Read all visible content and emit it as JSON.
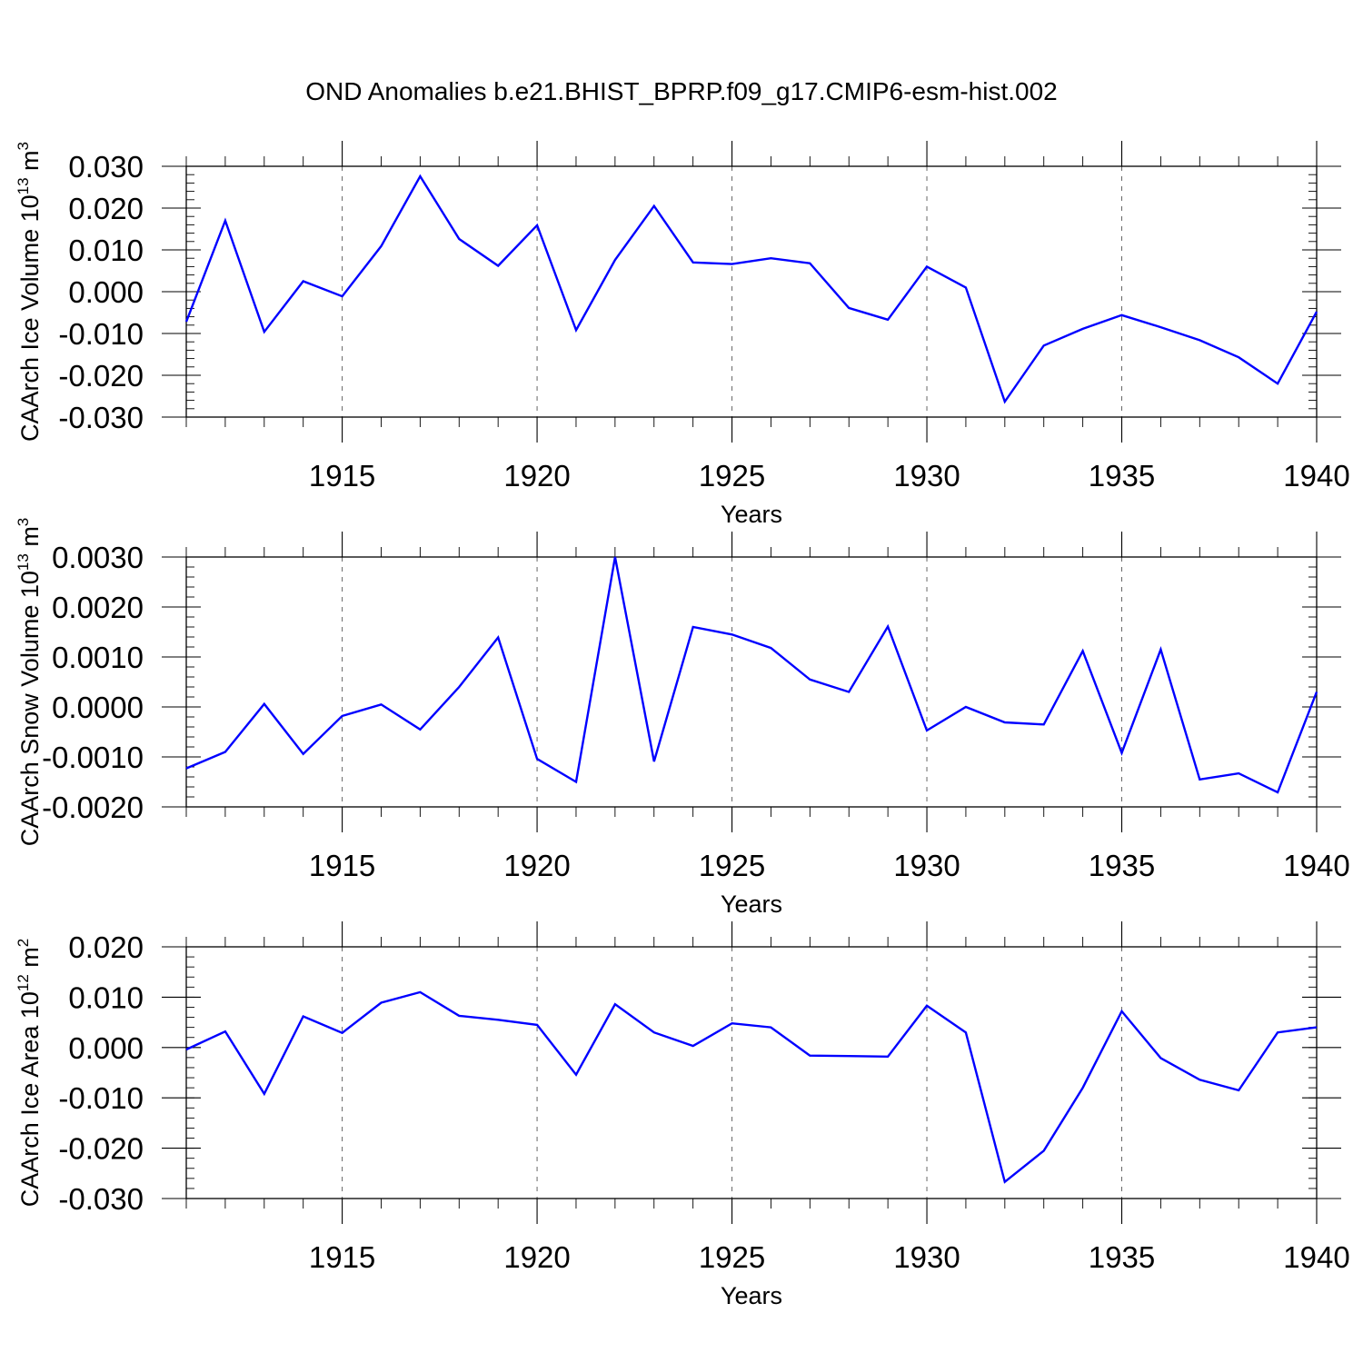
{
  "title": "OND Anomalies b.e21.BHIST_BPRP.f09_g17.CMIP6-esm-hist.002",
  "chart_data": [
    {
      "type": "line",
      "id": "ice-volume",
      "ylabel_base": "CAArch Ice Volume 10",
      "ylabel_exp": "13",
      "ylabel_unit": " m",
      "ylabel_unit_exp": "3",
      "xlabel": "Years",
      "xlim": [
        1911,
        1940
      ],
      "ylim": [
        -0.03,
        0.03
      ],
      "xticks": [
        1915,
        1920,
        1925,
        1930,
        1935,
        1940
      ],
      "xtick_labels": [
        "1915",
        "1920",
        "1925",
        "1930",
        "1935",
        "1940"
      ],
      "yticks": [
        0.03,
        0.02,
        0.01,
        0.0,
        -0.01,
        -0.02,
        -0.03
      ],
      "ytick_labels": [
        "0.030",
        "0.020",
        "0.010",
        "0.000",
        "-0.010",
        "-0.020",
        "-0.030"
      ],
      "series_color": "#0000ff",
      "x": [
        1911,
        1912,
        1913,
        1914,
        1915,
        1916,
        1917,
        1918,
        1919,
        1920,
        1921,
        1922,
        1923,
        1924,
        1925,
        1926,
        1927,
        1928,
        1929,
        1930,
        1931,
        1932,
        1933,
        1934,
        1935,
        1936,
        1937,
        1938,
        1939,
        1940
      ],
      "values": [
        -0.0072,
        0.017,
        -0.0096,
        0.0025,
        -0.0011,
        0.0109,
        0.0276,
        0.0126,
        0.0062,
        0.0159,
        -0.0092,
        0.0076,
        0.0205,
        0.007,
        0.0066,
        0.008,
        0.0068,
        -0.0039,
        -0.0067,
        0.006,
        0.001,
        -0.0263,
        -0.0129,
        -0.0089,
        -0.0056,
        -0.0085,
        -0.0116,
        -0.0157,
        -0.022,
        -0.0048
      ]
    },
    {
      "type": "line",
      "id": "snow-volume",
      "ylabel_base": "CAArch Snow Volume 10",
      "ylabel_exp": "13",
      "ylabel_unit": " m",
      "ylabel_unit_exp": "3",
      "xlabel": "Years",
      "xlim": [
        1911,
        1940
      ],
      "ylim": [
        -0.002,
        0.003
      ],
      "xticks": [
        1915,
        1920,
        1925,
        1930,
        1935,
        1940
      ],
      "xtick_labels": [
        "1915",
        "1920",
        "1925",
        "1930",
        "1935",
        "1940"
      ],
      "yticks": [
        0.003,
        0.002,
        0.001,
        0.0,
        -0.001,
        -0.002
      ],
      "ytick_labels": [
        "0.0030",
        "0.0020",
        "0.0010",
        "0.0000",
        "-0.0010",
        "-0.0020"
      ],
      "series_color": "#0000ff",
      "x": [
        1911,
        1912,
        1913,
        1914,
        1915,
        1916,
        1917,
        1918,
        1919,
        1920,
        1921,
        1922,
        1923,
        1924,
        1925,
        1926,
        1927,
        1928,
        1929,
        1930,
        1931,
        1932,
        1933,
        1934,
        1935,
        1936,
        1937,
        1938,
        1939,
        1940
      ],
      "values": [
        -0.00123,
        -0.0009,
        6e-05,
        -0.00094,
        -0.00018,
        5e-05,
        -0.00045,
        0.0004,
        0.00139,
        -0.00104,
        -0.0015,
        0.003,
        -0.00109,
        0.0016,
        0.00145,
        0.00118,
        0.00055,
        0.0003,
        0.00161,
        -0.00047,
        0.0,
        -0.00031,
        -0.00035,
        0.00112,
        -0.00092,
        0.00115,
        -0.00145,
        -0.00133,
        -0.00171,
        0.0003
      ]
    },
    {
      "type": "line",
      "id": "ice-area",
      "ylabel_base": "CAArch Ice Area 10",
      "ylabel_exp": "12",
      "ylabel_unit": " m",
      "ylabel_unit_exp": "2",
      "xlabel": "Years",
      "xlim": [
        1911,
        1940
      ],
      "ylim": [
        -0.03,
        0.02
      ],
      "xticks": [
        1915,
        1920,
        1925,
        1930,
        1935,
        1940
      ],
      "xtick_labels": [
        "1915",
        "1920",
        "1925",
        "1930",
        "1935",
        "1940"
      ],
      "yticks": [
        0.02,
        0.01,
        0.0,
        -0.01,
        -0.02,
        -0.03
      ],
      "ytick_labels": [
        "0.020",
        "0.010",
        "0.000",
        "-0.010",
        "-0.020",
        "-0.030"
      ],
      "series_color": "#0000ff",
      "x": [
        1911,
        1912,
        1913,
        1914,
        1915,
        1916,
        1917,
        1918,
        1919,
        1920,
        1921,
        1922,
        1923,
        1924,
        1925,
        1926,
        1927,
        1928,
        1929,
        1930,
        1931,
        1932,
        1933,
        1934,
        1935,
        1936,
        1937,
        1938,
        1939,
        1940
      ],
      "values": [
        -0.0004,
        0.0032,
        -0.0092,
        0.0062,
        0.0029,
        0.0089,
        0.011,
        0.0063,
        0.0055,
        0.0045,
        -0.0054,
        0.0086,
        0.003,
        0.0003,
        0.0048,
        0.004,
        -0.0016,
        -0.0017,
        -0.0018,
        0.0083,
        0.003,
        -0.0267,
        -0.0205,
        -0.008,
        0.0072,
        -0.0021,
        -0.0064,
        -0.0085,
        0.003,
        0.004
      ]
    }
  ]
}
